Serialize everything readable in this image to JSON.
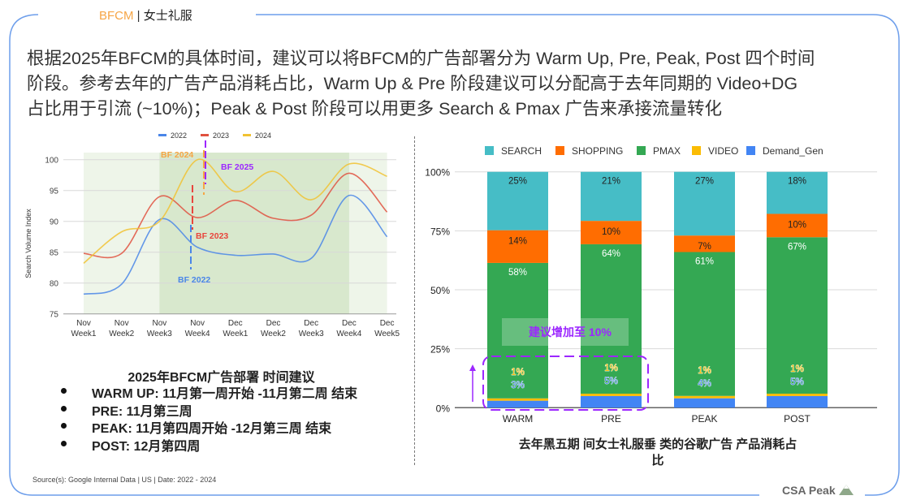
{
  "header": {
    "brand": "BFCM",
    "separator": "|",
    "category": "女士礼服"
  },
  "headline": {
    "lines": [
      "根据2025年BFCM的具体时间，建议可以将BFCM的广告部署分为 Warm Up, Pre, Peak, Post 四个时间",
      "阶段。参考去年的广告产品消耗占比，Warm Up & Pre 阶段建议可以分配高于去年同期的 Video+DG",
      "占比用于引流 (~10%)；Peak & Post 阶段可以用更多 Search & Pmax 广告来承接流量转化"
    ]
  },
  "chart_data": [
    {
      "type": "line",
      "title": "",
      "xlabel": "",
      "ylabel": "Search Volume Index",
      "ylim": [
        75,
        100
      ],
      "yticks": [
        "75",
        "80",
        "85",
        "90",
        "95",
        "100"
      ],
      "grid": true,
      "legend_position": "top",
      "categories": [
        [
          "Nov",
          "Week1"
        ],
        [
          "Nov",
          "Week2"
        ],
        [
          "Nov",
          "Week3"
        ],
        [
          "Nov",
          "Week4"
        ],
        [
          "Dec",
          "Week1"
        ],
        [
          "Dec",
          "Week2"
        ],
        [
          "Dec",
          "Week3"
        ],
        [
          "Dec",
          "Week4"
        ],
        [
          "Dec",
          "Week5"
        ]
      ],
      "series": [
        {
          "name": "2022",
          "color": "#4a86e8",
          "values": [
            78.2,
            79.8,
            90.3,
            85.8,
            84.5,
            84.7,
            84.0,
            94.2,
            87.5
          ]
        },
        {
          "name": "2023",
          "color": "#e0513f",
          "values": [
            84.8,
            84.8,
            94.0,
            90.6,
            93.4,
            90.5,
            91.0,
            97.8,
            91.5
          ]
        },
        {
          "name": "2024",
          "color": "#f1c232",
          "values": [
            83.2,
            88.3,
            90.0,
            100.0,
            94.8,
            98.1,
            93.5,
            99.3,
            97.3
          ]
        }
      ],
      "annotations": [
        {
          "label": "BF 2022",
          "color": "#4a86e8"
        },
        {
          "label": "BF 2023",
          "color": "#e8453c"
        },
        {
          "label": "BF 2024",
          "color": "#f6a545"
        },
        {
          "label": "BF 2025",
          "color": "#9c27ff"
        }
      ]
    },
    {
      "type": "bar",
      "stacked": true,
      "title": "去年黑五期 间女士礼服垂 类的谷歌广告 产品消耗占比",
      "ylim": [
        0,
        100
      ],
      "yticks": [
        "0%",
        "25%",
        "50%",
        "75%",
        "100%"
      ],
      "legend_position": "top",
      "categories": [
        "WARM",
        "PRE",
        "PEAK",
        "POST"
      ],
      "series": [
        {
          "name": "Demand_Gen",
          "color": "#4285f4",
          "values": [
            3,
            5,
            4,
            5
          ]
        },
        {
          "name": "VIDEO",
          "color": "#fbbc04",
          "values": [
            1,
            1,
            1,
            1
          ]
        },
        {
          "name": "PMAX",
          "color": "#34a853",
          "values": [
            58,
            64,
            61,
            67
          ]
        },
        {
          "name": "SHOPPING",
          "color": "#ff6d01",
          "values": [
            14,
            10,
            7,
            10
          ]
        },
        {
          "name": "SEARCH",
          "color": "#46bdc6",
          "values": [
            25,
            21,
            27,
            18
          ]
        }
      ],
      "legend_order": [
        "SEARCH",
        "SHOPPING",
        "PMAX",
        "VIDEO",
        "Demand_Gen"
      ],
      "callout": {
        "label": "建议增加至 10%",
        "color": "#9c27ff"
      }
    }
  ],
  "plan": {
    "title": "2025年BFCM广告部署 时间建议",
    "items": [
      "WARM UP: 11月第一周开始 -11月第二周 结束",
      "PRE: 11月第三周",
      "PEAK: 11月第四周开始 -12月第三周 结束",
      "POST: 12月第四周"
    ]
  },
  "source": "Source(s): Google Internal Data | US | Date: 2022 - 2024",
  "bar_caption": {
    "line1": "去年黑五期 间女士礼服垂 类的谷歌广告 产品消耗占",
    "line2": "比"
  },
  "footer": {
    "label": "CSA Peak",
    "icon": "mountain-icon"
  }
}
